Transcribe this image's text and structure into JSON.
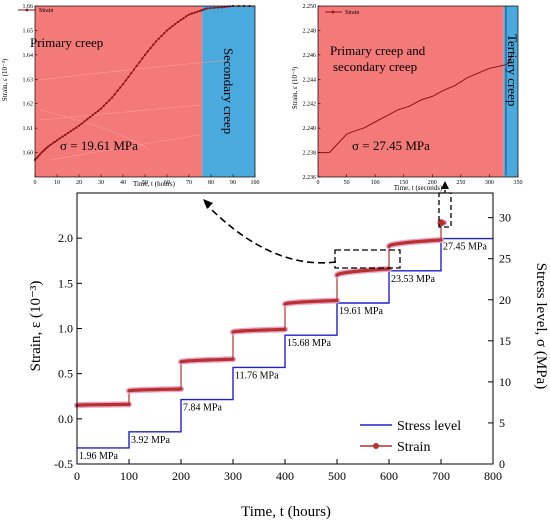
{
  "chart_data": {
    "main": {
      "type": "line",
      "xlabel": "Time, t (hours)",
      "ylabel_left": "Strain, ε (10⁻³)",
      "ylabel_right": "Stress level, σ (MPa)",
      "xlim": [
        0,
        800
      ],
      "ylim_left": [
        -0.5,
        2.5
      ],
      "ylim_right": [
        0,
        33
      ],
      "xticks": [
        0,
        100,
        200,
        300,
        400,
        500,
        600,
        700,
        800
      ],
      "yticks_left": [
        -0.5,
        0.0,
        0.5,
        1.0,
        1.5,
        2.0
      ],
      "yticks_left_labels": [
        "-0.5",
        "0.0",
        "0.5",
        "1.0",
        "1.5",
        "2.0"
      ],
      "yticks_right": [
        0,
        5,
        10,
        15,
        20,
        25,
        30
      ],
      "stress_series": {
        "name": "Stress level",
        "color": "#1f1fd6",
        "steps": [
          {
            "x0": 0,
            "x1": 100,
            "value": 1.96,
            "label": "1.96 MPa"
          },
          {
            "x0": 100,
            "x1": 200,
            "value": 3.92,
            "label": "3.92 MPa"
          },
          {
            "x0": 200,
            "x1": 300,
            "value": 7.84,
            "label": "7.84 MPa"
          },
          {
            "x0": 300,
            "x1": 400,
            "value": 11.76,
            "label": "11.76 MPa"
          },
          {
            "x0": 400,
            "x1": 500,
            "value": 15.68,
            "label": "15.68 MPa"
          },
          {
            "x0": 500,
            "x1": 600,
            "value": 19.61,
            "label": "19.61 MPa"
          },
          {
            "x0": 600,
            "x1": 700,
            "value": 23.53,
            "label": "23.53 MPa"
          },
          {
            "x0": 700,
            "x1": 800,
            "value": 27.45,
            "label": "27.45 MPa"
          }
        ]
      },
      "strain_series": {
        "name": "Strain",
        "color": "#b8312f",
        "stages": [
          {
            "x0": 0,
            "x1": 100,
            "y0": 0.15,
            "y1": 0.16
          },
          {
            "x0": 100,
            "x1": 200,
            "y0": 0.31,
            "y1": 0.33
          },
          {
            "x0": 200,
            "x1": 300,
            "y0": 0.63,
            "y1": 0.66
          },
          {
            "x0": 300,
            "x1": 400,
            "y0": 0.96,
            "y1": 0.99
          },
          {
            "x0": 400,
            "x1": 500,
            "y0": 1.27,
            "y1": 1.31
          },
          {
            "x0": 500,
            "x1": 600,
            "y0": 1.59,
            "y1": 1.66
          },
          {
            "x0": 600,
            "x1": 700,
            "y0": 1.91,
            "y1": 1.98
          },
          {
            "x0": 700,
            "x1": 706,
            "y0": 2.17,
            "y1": 2.17
          }
        ]
      },
      "legend": [
        "Stress level",
        "Strain"
      ],
      "legend_position": "bottom-right"
    },
    "inset_left": {
      "type": "line",
      "series_name": "Strain",
      "xlabel": "Time, t (hours)",
      "ylabel": "Strain, ε (10⁻³)",
      "xlim": [
        0,
        100
      ],
      "ylim": [
        1.59,
        1.66
      ],
      "xticks": [
        0,
        10,
        20,
        30,
        40,
        50,
        60,
        70,
        80,
        90,
        100
      ],
      "yticks": [
        1.6,
        1.61,
        1.62,
        1.63,
        1.64,
        1.65,
        1.66
      ],
      "yticks_labels": [
        "1.60",
        "1.61",
        "1.62",
        "1.63",
        "1.64",
        "1.65",
        "1.66"
      ],
      "x": [
        0,
        3,
        6,
        10,
        15,
        20,
        25,
        30,
        35,
        40,
        45,
        50,
        55,
        60,
        65,
        70,
        75,
        78,
        85,
        90,
        100
      ],
      "y": [
        1.597,
        1.6,
        1.6025,
        1.605,
        1.608,
        1.611,
        1.6145,
        1.618,
        1.6225,
        1.628,
        1.634,
        1.64,
        1.6455,
        1.65,
        1.6535,
        1.6565,
        1.658,
        1.659,
        1.6595,
        1.66,
        1.66
      ],
      "regions": [
        {
          "label": "Primary creep",
          "x0": 0,
          "x1": 76,
          "color": "#f47a7a"
        },
        {
          "label": "Secondary creep",
          "x0": 76,
          "x1": 100,
          "color": "#4aa9dd"
        }
      ],
      "annotation": "σ = 19.61 MPa"
    },
    "inset_right": {
      "type": "line",
      "series_name": "Strain",
      "xlabel": "Time, t (seconds)",
      "ylabel": "Strain, ε (10⁻³)",
      "xlim": [
        0,
        350
      ],
      "ylim": [
        2.236,
        2.25
      ],
      "xticks": [
        0,
        50,
        100,
        150,
        200,
        250,
        300,
        350
      ],
      "yticks": [
        2.236,
        2.238,
        2.24,
        2.242,
        2.244,
        2.246,
        2.248,
        2.25
      ],
      "yticks_labels": [
        "2.236",
        "2.238",
        "2.240",
        "2.242",
        "2.244",
        "2.246",
        "2.248",
        "2.250"
      ],
      "x": [
        0,
        20,
        30,
        50,
        60,
        80,
        100,
        120,
        140,
        160,
        180,
        200,
        220,
        240,
        260,
        280,
        300,
        320,
        330,
        335,
        338,
        340
      ],
      "y": [
        2.238,
        2.238,
        2.2385,
        2.2395,
        2.2397,
        2.24,
        2.2405,
        2.241,
        2.2415,
        2.2418,
        2.2423,
        2.2426,
        2.2431,
        2.2435,
        2.2441,
        2.2445,
        2.2449,
        2.2451,
        2.2452,
        2.2455,
        2.2458,
        2.2462
      ],
      "regions": [
        {
          "label": "Primary creep and secondary creep",
          "x0": 0,
          "x1": 325,
          "color": "#f47a7a"
        },
        {
          "label": "Tertiary creep",
          "x0": 325,
          "x1": 350,
          "color": "#4aa9dd"
        }
      ],
      "annotation": "σ = 27.45 MPa"
    }
  }
}
